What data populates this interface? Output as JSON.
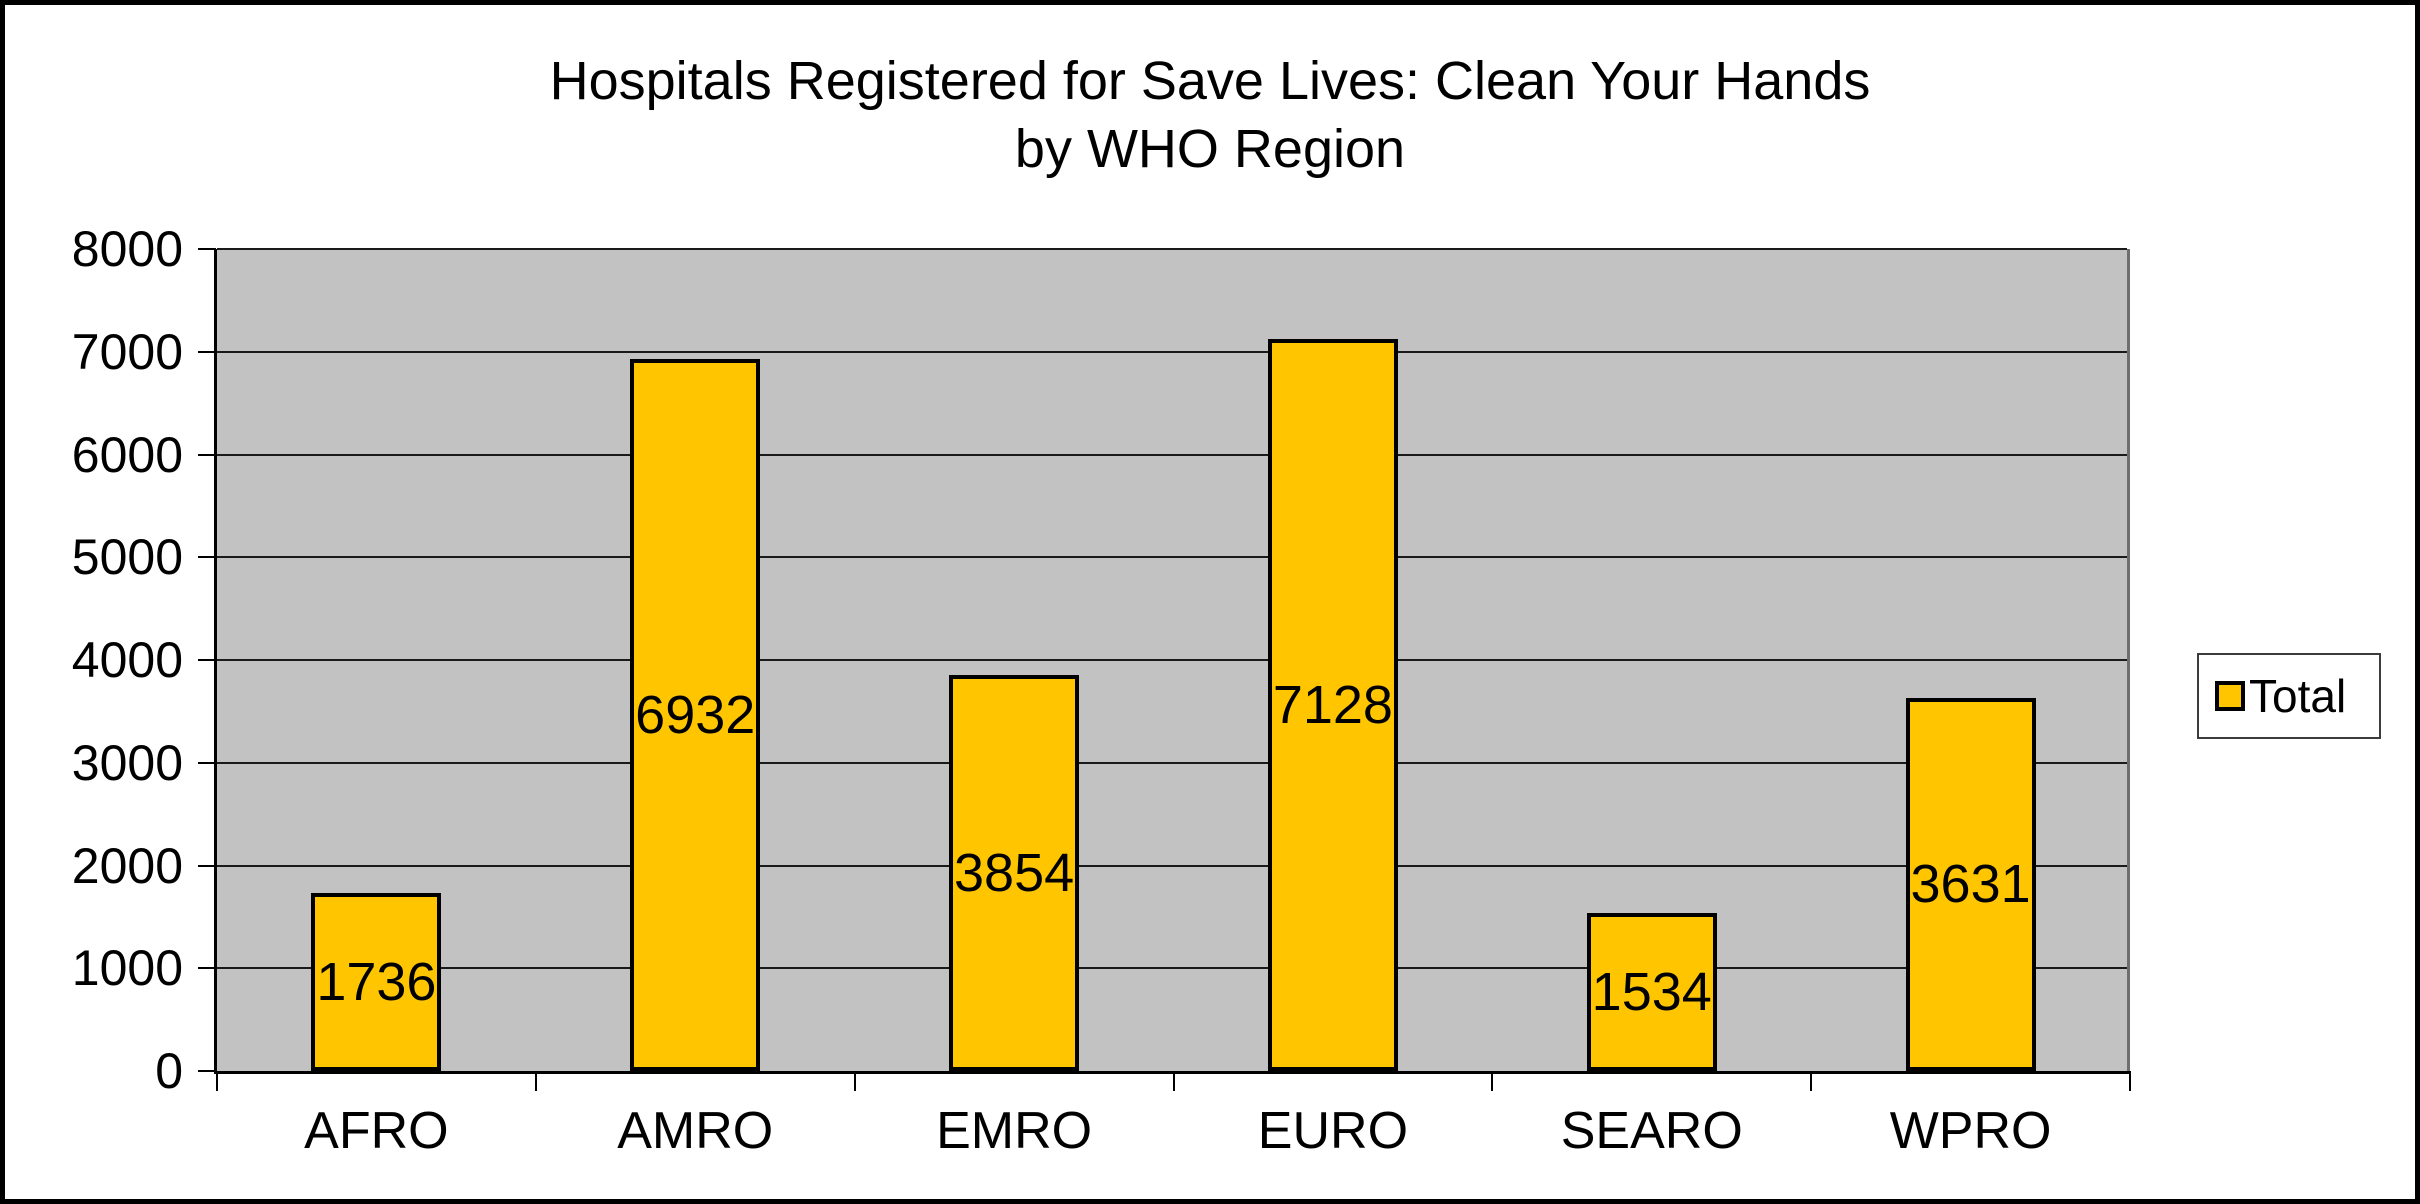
{
  "chart_data": {
    "type": "bar",
    "title": "Hospitals Registered for Save Lives: Clean Your Hands by WHO Region",
    "title_lines": [
      "Hospitals Registered for Save Lives: Clean Your Hands",
      "by WHO Region"
    ],
    "categories": [
      "AFRO",
      "AMRO",
      "EMRO",
      "EURO",
      "SEARO",
      "WPRO"
    ],
    "series": [
      {
        "name": "Total",
        "values": [
          1736,
          6932,
          3854,
          7128,
          1534,
          3631
        ]
      }
    ],
    "data_labels_shown": true,
    "xlabel": "",
    "ylabel": "",
    "ylim": [
      0,
      8000
    ],
    "yticks": [
      0,
      1000,
      2000,
      3000,
      4000,
      5000,
      6000,
      7000,
      8000
    ],
    "grid": "horizontal-major",
    "legend_position": "right-middle",
    "colors": {
      "bar_fill": "#FFC600",
      "bar_border": "#000000",
      "plot_bg": "#C2C2C2",
      "gridline": "#1A1A1A",
      "axis": "#000000",
      "text": "#000000",
      "chart_bg": "#FFFFFF",
      "chart_border": "#000000",
      "legend_border": "#3C3C3C"
    }
  }
}
